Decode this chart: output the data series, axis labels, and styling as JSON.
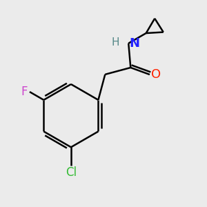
{
  "background_color": "#ebebeb",
  "bond_color": "#000000",
  "bond_width": 1.8,
  "atom_F": {
    "label": "F",
    "color": "#cc44cc",
    "fontsize": 12
  },
  "atom_Cl": {
    "label": "Cl",
    "color": "#33bb33",
    "fontsize": 12
  },
  "atom_O": {
    "label": "O",
    "color": "#ff2200",
    "fontsize": 13
  },
  "atom_N": {
    "label": "N",
    "color": "#2222ff",
    "fontsize": 13
  },
  "atom_H": {
    "label": "H",
    "color": "#558888",
    "fontsize": 11
  }
}
